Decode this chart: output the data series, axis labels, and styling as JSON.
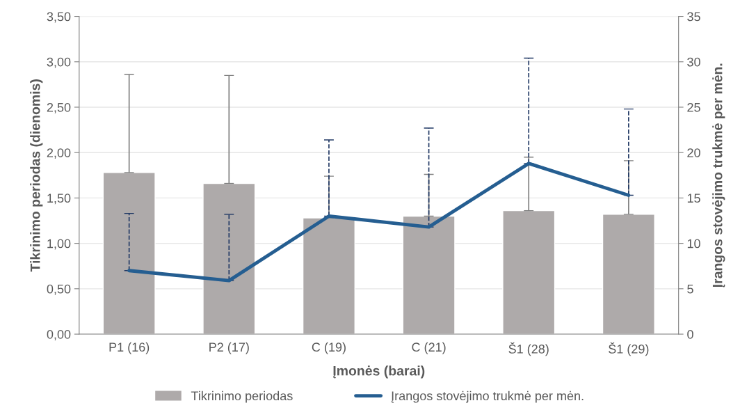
{
  "chart_data": {
    "type": "bar",
    "xlabel": "Įmonės (barai)",
    "ylabel": "Tikrinimo periodas (dienomis)",
    "y2label": "Įrangos stovėjimo trukmė per mėn.",
    "categories": [
      "P1 (16)",
      "P2 (17)",
      "C (19)",
      "C (21)",
      "Š1 (28)",
      "Š1 (29)"
    ],
    "series": [
      {
        "name": "Tikrinimo periodas",
        "color": "#aeaaaa",
        "values": [
          1.78,
          1.66,
          1.28,
          1.3,
          1.36,
          1.32
        ],
        "errors": [
          [
            1.78,
            2.86
          ],
          [
            1.66,
            2.85
          ],
          [
            1.28,
            1.74
          ],
          [
            1.3,
            1.76
          ],
          [
            1.36,
            1.95
          ],
          [
            1.32,
            1.91
          ]
        ]
      },
      {
        "name": "Įrangos stovėjimo trukmė per mėn.",
        "type": "line",
        "axis": "y2",
        "color": "#255e91",
        "line_style": "solid",
        "marker": "none",
        "values": [
          7.0,
          5.9,
          13.0,
          11.8,
          18.8,
          15.3
        ],
        "errors": [
          [
            7.0,
            13.3
          ],
          [
            5.9,
            13.2
          ],
          [
            13.0,
            21.4
          ],
          [
            11.8,
            22.7
          ],
          [
            18.8,
            30.4
          ],
          [
            15.3,
            24.8
          ]
        ]
      }
    ],
    "ylim": [
      0,
      3.5
    ],
    "yticks": [
      {
        "value": 0,
        "label": "0,00"
      },
      {
        "value": 0.5,
        "label": "0,50"
      },
      {
        "value": 1,
        "label": "1,00"
      },
      {
        "value": 1.5,
        "label": "1,50"
      },
      {
        "value": 2,
        "label": "2,00"
      },
      {
        "value": 2.5,
        "label": "2,50"
      },
      {
        "value": 3,
        "label": "3,00"
      },
      {
        "value": 3.5,
        "label": "3,50"
      }
    ],
    "y2lim": [
      0,
      35
    ],
    "y2ticks": [
      0,
      5,
      10,
      15,
      20,
      25,
      30,
      35
    ],
    "grid": "y",
    "legend": "bottom"
  }
}
